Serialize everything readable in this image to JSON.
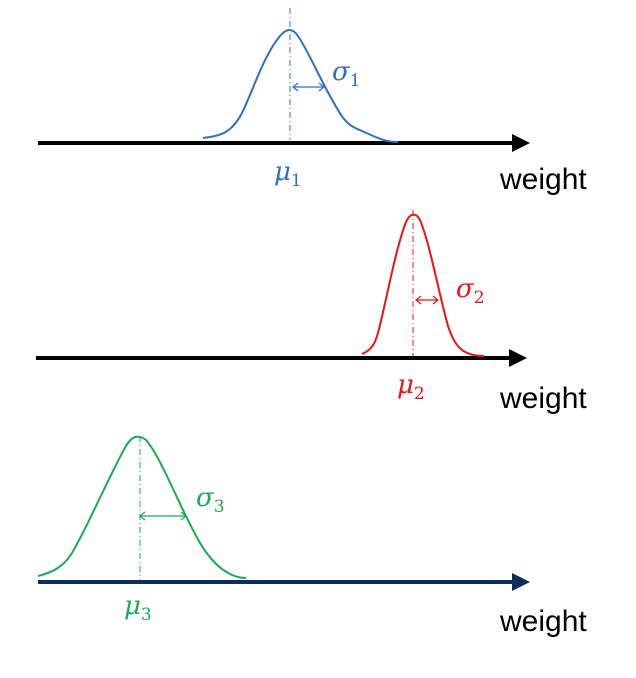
{
  "axis_label": "weight",
  "panels": [
    {
      "mean_label": "μ",
      "mean_sub": "1",
      "std_label": "σ",
      "std_sub": "1",
      "color": "#2f6fc0",
      "axis_color": "#000000"
    },
    {
      "mean_label": "μ",
      "mean_sub": "2",
      "std_label": "σ",
      "std_sub": "2",
      "color": "#e8141c",
      "axis_color": "#000000"
    },
    {
      "mean_label": "μ",
      "mean_sub": "3",
      "std_label": "σ",
      "std_sub": "3",
      "color": "#1aaa55",
      "axis_color": "#0c2b5e"
    }
  ]
}
